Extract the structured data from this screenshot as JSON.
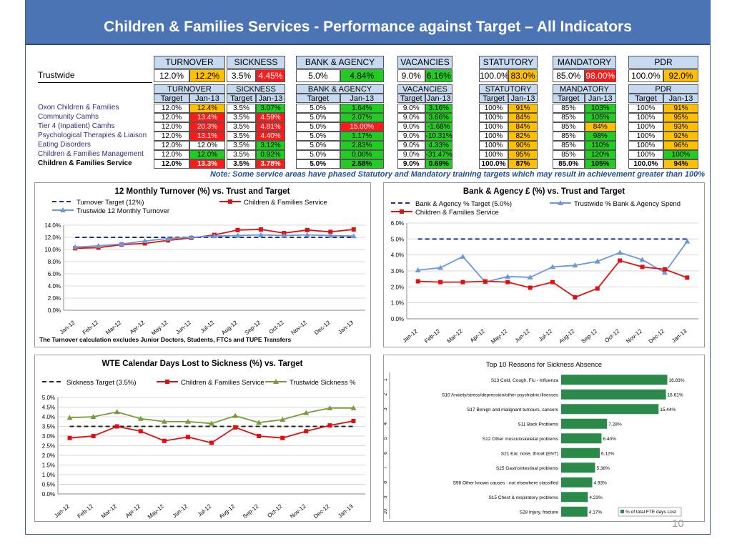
{
  "title": "Children & Families  Services - Performance against Target – All Indicators",
  "page_number": "10",
  "summary_headers": [
    "TURNOVER",
    "SICKNESS",
    "BANK & AGENCY",
    "VACANCIES",
    "STATUTORY",
    "MANDATORY",
    "PDR"
  ],
  "trustwide": {
    "label": "Trustwide",
    "values": [
      [
        "12.0%",
        "12.2%"
      ],
      [
        "3.5%",
        "4.45%"
      ],
      [
        "5.0%",
        "4.84%"
      ],
      [
        "9.0%",
        "6.16%"
      ],
      [
        "100.0%",
        "83.0%"
      ],
      [
        "85.0%",
        "98.00%"
      ],
      [
        "100.0%",
        "92.0%"
      ]
    ],
    "colors": [
      "#ffc000",
      "#ff1a1a",
      "#22cc22",
      "#22cc22",
      "#ffc000",
      "#ff1a1a",
      "#ffc000"
    ]
  },
  "detail_headers": [
    "TURNOVER",
    "SICKNESS",
    "BANK & AGENCY",
    "VACANCIES",
    "STATUTORY",
    "MANDATORY",
    "PDR"
  ],
  "sub_headers": [
    "Target",
    "Jan-13"
  ],
  "rows": [
    {
      "label": "Oxon Children & Families",
      "values": [
        "12.0%",
        "12.4%",
        "3.5%",
        "3.07%",
        "5.0%",
        "1.64%",
        "9.0%",
        "3.16%",
        "100%",
        "91%",
        "85%",
        "103%",
        "100%",
        "91%"
      ],
      "colors": [
        "amber",
        "green",
        "green",
        "green",
        "amber",
        "green",
        "amber"
      ]
    },
    {
      "label": "Community Camhs",
      "values": [
        "12.0%",
        "13.4%",
        "3.5%",
        "4.59%",
        "5.0%",
        "2.07%",
        "9.0%",
        "3.66%",
        "100%",
        "84%",
        "85%",
        "105%",
        "100%",
        "95%"
      ],
      "colors": [
        "red",
        "red",
        "green",
        "green",
        "amber",
        "green",
        "amber"
      ]
    },
    {
      "label": "Tier 4 (Inpatient) Camhs",
      "values": [
        "12.0%",
        "20.3%",
        "3.5%",
        "4.81%",
        "5.0%",
        "15.00%",
        "9.0%",
        "-1.68%",
        "100%",
        "84%",
        "85%",
        "84%",
        "100%",
        "93%"
      ],
      "colors": [
        "red",
        "red",
        "red",
        "green",
        "amber",
        "amber",
        "amber"
      ]
    },
    {
      "label": "Psychological Therapies & Liaison",
      "values": [
        "12.0%",
        "13.1%",
        "3.5%",
        "4.40%",
        "5.0%",
        "1.17%",
        "9.0%",
        "-10.31%",
        "100%",
        "82%",
        "85%",
        "98%",
        "100%",
        "92%"
      ],
      "colors": [
        "red",
        "red",
        "green",
        "green",
        "amber",
        "green",
        "amber"
      ]
    },
    {
      "label": "Eating Disorders",
      "values": [
        "12.0%",
        "12.0%",
        "3.5%",
        "3.12%",
        "5.0%",
        "2.83%",
        "9.0%",
        "4.33%",
        "100%",
        "90%",
        "85%",
        "110%",
        "100%",
        "96%"
      ],
      "colors": [
        "white",
        "green",
        "green",
        "green",
        "amber",
        "green",
        "amber"
      ]
    },
    {
      "label": "Children & Families Management",
      "values": [
        "12.0%",
        "12.0%",
        "3.5%",
        "0.92%",
        "5.0%",
        "0.00%",
        "9.0%",
        "-31.47%",
        "100%",
        "95%",
        "85%",
        "120%",
        "100%",
        "100%"
      ],
      "colors": [
        "green",
        "green",
        "green",
        "green",
        "amber",
        "green",
        "green"
      ]
    },
    {
      "label": "Children & Families Service",
      "values": [
        "12.0%",
        "13.3%",
        "3.5%",
        "3.78%",
        "5.0%",
        "2.58%",
        "9.0%",
        "0.69%",
        "100.0%",
        "87%",
        "85.0%",
        "105%",
        "100.0%",
        "94%"
      ],
      "colors": [
        "red",
        "red",
        "green",
        "green",
        "amber",
        "green",
        "amber"
      ],
      "bold": true
    }
  ],
  "note": "Note: Some service areas have phased Statutory and Mandatory training targets which may result in achievement greater than 100%",
  "chart_data": [
    {
      "type": "line",
      "title": "12 Monthly Turnover (%) vs.  Trust and Target",
      "x": [
        "Jan-12",
        "Feb-12",
        "Mar-12",
        "Apr-12",
        "May-12",
        "Jun-12",
        "Jul-12",
        "Aug-12",
        "Sep-12",
        "Oct-12",
        "Nov-12",
        "Dec-12",
        "Jan-13"
      ],
      "ylim": [
        0,
        14
      ],
      "yticks": [
        "0.0%",
        "2.0%",
        "4.0%",
        "6.0%",
        "8.0%",
        "10.0%",
        "12.0%",
        "14.0%"
      ],
      "series": [
        {
          "name": "Turnover Target (12%)",
          "values": [
            12,
            12,
            12,
            12,
            12,
            12,
            12,
            12,
            12,
            12,
            12,
            12,
            12
          ],
          "color": "#1f2d8c",
          "style": "dash"
        },
        {
          "name": "Children & Families Service",
          "values": [
            10.2,
            10.3,
            10.8,
            11.0,
            11.5,
            11.9,
            12.4,
            13.2,
            13.3,
            12.7,
            13.2,
            12.9,
            13.3
          ],
          "color": "#e01010",
          "marker": "square"
        },
        {
          "name": "Trustwide 12 Monthly Turnover",
          "values": [
            10.4,
            10.6,
            10.9,
            11.4,
            11.8,
            12.0,
            12.2,
            12.3,
            12.4,
            12.3,
            12.4,
            12.3,
            12.2
          ],
          "color": "#6a98d8",
          "marker": "triangle"
        }
      ],
      "footnote": "The Turnover calculation excludes Junior Doctors, Students, FTCs and TUPE Transfers"
    },
    {
      "type": "line",
      "title": "Bank & Agency £ (%) vs. Trust and Target",
      "x": [
        "Jan-12",
        "Feb-12",
        "Mar-12",
        "Apr-12",
        "May-12",
        "Jun-12",
        "Jul-12",
        "Aug-12",
        "Sep-12",
        "Oct-12",
        "Nov-12",
        "Dec-12",
        "Jan-13"
      ],
      "ylim": [
        0,
        6
      ],
      "yticks": [
        "0.0%",
        "1.0%",
        "2.0%",
        "3.0%",
        "4.0%",
        "5.0%",
        "6.0%"
      ],
      "series": [
        {
          "name": "Bank & Agency % Target (5.0%)",
          "values": [
            5,
            5,
            5,
            5,
            5,
            5,
            5,
            5,
            5,
            5,
            5,
            5,
            5
          ],
          "color": "#1f2d8c",
          "style": "dash"
        },
        {
          "name": "Trustwide % Bank & Agency Spend",
          "values": [
            3.05,
            3.2,
            3.9,
            2.3,
            2.65,
            2.6,
            3.25,
            3.35,
            3.6,
            4.15,
            3.7,
            2.9,
            4.85
          ],
          "color": "#6a98d8",
          "marker": "triangle"
        },
        {
          "name": "Children & Families Service",
          "values": [
            2.35,
            2.3,
            2.3,
            2.35,
            2.3,
            1.95,
            2.3,
            1.35,
            1.9,
            3.65,
            3.25,
            3.1,
            2.58
          ],
          "color": "#e01010",
          "marker": "square"
        }
      ]
    },
    {
      "type": "line",
      "title": "WTE Calendar Days Lost to Sickness (%) vs.  Target",
      "x": [
        "Jan-12",
        "Feb-12",
        "Mar-12",
        "Apr-12",
        "May-12",
        "Jun-12",
        "Jul-12",
        "Aug-12",
        "Sep-12",
        "Oct-12",
        "Nov-12",
        "Dec-12",
        "Jan-13"
      ],
      "ylim": [
        0,
        5
      ],
      "yticks": [
        "0.0%",
        "0.5%",
        "1.0%",
        "1.5%",
        "2.0%",
        "2.5%",
        "3.0%",
        "3.5%",
        "4.0%",
        "4.5%",
        "5.0%"
      ],
      "series": [
        {
          "name": "Sickness Target (3.5%)",
          "values": [
            3.5,
            3.5,
            3.5,
            3.5,
            3.5,
            3.5,
            3.5,
            3.5,
            3.5,
            3.5,
            3.5,
            3.5,
            3.5
          ],
          "color": "#1f2d1f",
          "style": "dash"
        },
        {
          "name": "Children & Families Service",
          "values": [
            2.9,
            3.0,
            3.5,
            3.25,
            2.75,
            2.95,
            2.65,
            3.45,
            3.0,
            2.9,
            3.25,
            3.55,
            3.78
          ],
          "color": "#e01010",
          "marker": "square"
        },
        {
          "name": "Trustwide Sickness %",
          "values": [
            3.95,
            4.0,
            4.25,
            3.9,
            3.75,
            3.75,
            3.65,
            4.05,
            3.7,
            3.85,
            4.2,
            4.45,
            4.45
          ],
          "color": "#7a9a3a",
          "marker": "triangle"
        }
      ]
    },
    {
      "type": "bar",
      "orientation": "horizontal",
      "title": "Top 10 Reasons for Sickness Absence",
      "ranks": [
        "1",
        "2",
        "3",
        "4",
        "5",
        "6",
        "7",
        "8",
        "9",
        "10"
      ],
      "categories": [
        "S13 Cold, Cough, Flu - Influenza",
        "S10 Anxiety/stress/depression/other psychiatric illnesses",
        "S17 Benign and malignant tumours, cancers",
        "S11 Back Problems",
        "S12 Other musculoskeletal problems",
        "S21 Ear, nose, throat (ENT)",
        "S25 Gastrointestinal problems",
        "S98 Other known causes - not elsewhere classified",
        "S15 Chest & respiratory problems",
        "S28 Injury, fracture"
      ],
      "values": [
        16.83,
        16.61,
        15.44,
        7.28,
        6.4,
        6.12,
        5.38,
        4.93,
        4.23,
        4.17
      ],
      "labels": [
        "16.83%",
        "16.61%",
        "15.44%",
        "7.28%",
        "6.40%",
        "6.12%",
        "5.38%",
        "4.93%",
        "4.23%",
        "4.17%"
      ],
      "legend": "% of total FTE days Lost",
      "color": "#2a8a4a"
    }
  ]
}
